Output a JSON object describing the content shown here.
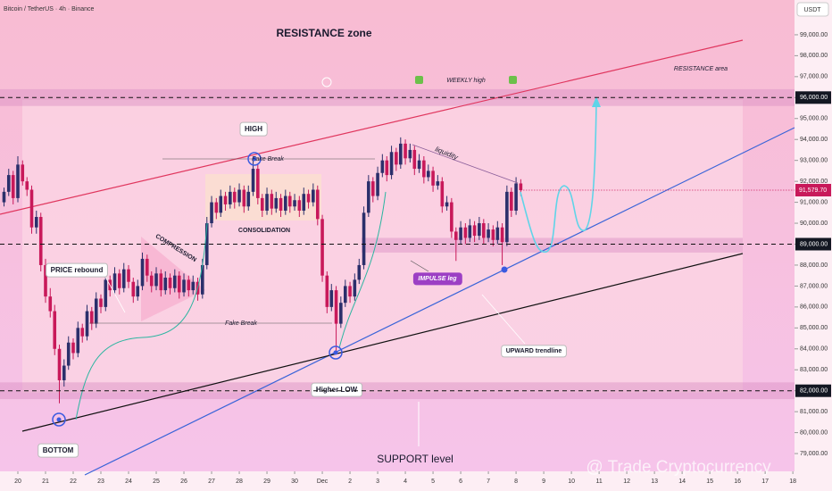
{
  "chart_data": {
    "type": "candlestick",
    "title": "Bitcoin / TetherUS · 4h · Binance",
    "currency": "USDT",
    "xlim": [
      -0.645,
      28.06
    ],
    "ylim": [
      78150,
      100660
    ],
    "xticks": [
      {
        "value": 0,
        "label": "20"
      },
      {
        "value": 1,
        "label": "21"
      },
      {
        "value": 2,
        "label": "22"
      },
      {
        "value": 3,
        "label": "23"
      },
      {
        "value": 4,
        "label": "24"
      },
      {
        "value": 5,
        "label": "25"
      },
      {
        "value": 6,
        "label": "26"
      },
      {
        "value": 7,
        "label": "27"
      },
      {
        "value": 8,
        "label": "28"
      },
      {
        "value": 9,
        "label": "29"
      },
      {
        "value": 10,
        "label": "30"
      },
      {
        "value": 11,
        "label": "Dec"
      },
      {
        "value": 12,
        "label": "2"
      },
      {
        "value": 13,
        "label": "3"
      },
      {
        "value": 14,
        "label": "4"
      },
      {
        "value": 15,
        "label": "5"
      },
      {
        "value": 16,
        "label": "6"
      },
      {
        "value": 17,
        "label": "7"
      },
      {
        "value": 18,
        "label": "8"
      },
      {
        "value": 19,
        "label": "9"
      },
      {
        "value": 20,
        "label": "10"
      },
      {
        "value": 21,
        "label": "11"
      },
      {
        "value": 22,
        "label": "12"
      },
      {
        "value": 23,
        "label": "13"
      },
      {
        "value": 24,
        "label": "14"
      },
      {
        "value": 25,
        "label": "15"
      },
      {
        "value": 26,
        "label": "16"
      },
      {
        "value": 27,
        "label": "17"
      },
      {
        "value": 28,
        "label": "18"
      }
    ],
    "yticks": [
      {
        "value": 79000,
        "label": "79,000.00"
      },
      {
        "value": 80000,
        "label": "80,000.00"
      },
      {
        "value": 81000,
        "label": "81,000.00"
      },
      {
        "value": 82000,
        "label": "82,000.00"
      },
      {
        "value": 83000,
        "label": "83,000.00"
      },
      {
        "value": 84000,
        "label": "84,000.00"
      },
      {
        "value": 85000,
        "label": "85,000.00"
      },
      {
        "value": 86000,
        "label": "86,000.00"
      },
      {
        "value": 87000,
        "label": "87,000.00"
      },
      {
        "value": 88000,
        "label": "88,000.00"
      },
      {
        "value": 89000,
        "label": "89,000.00"
      },
      {
        "value": 90000,
        "label": "90,000.00"
      },
      {
        "value": 91000,
        "label": "91,000.00"
      },
      {
        "value": 92000,
        "label": "92,000.00"
      },
      {
        "value": 93000,
        "label": "93,000.00"
      },
      {
        "value": 94000,
        "label": "94,000.00"
      },
      {
        "value": 95000,
        "label": "95,000.00"
      },
      {
        "value": 96000,
        "label": "96,000.00"
      },
      {
        "value": 97000,
        "label": "97,000.00"
      },
      {
        "value": 98000,
        "label": "98,000.00"
      },
      {
        "value": 99000,
        "label": "99,000.00"
      }
    ],
    "levels": [
      96000,
      89000,
      82000
    ],
    "zones": [
      [
        95600,
        96400
      ],
      [
        88600,
        89300
      ],
      [
        81600,
        82400
      ]
    ],
    "up_color": "#2b2f6b",
    "down_color": "#c8195a",
    "last_price": {
      "value": 91579.7,
      "label": "91,579.70"
    },
    "x": [
      -0.5,
      -0.33,
      -0.17,
      0,
      0.17,
      0.33,
      0.5,
      0.67,
      0.83,
      1,
      1.17,
      1.33,
      1.5,
      1.67,
      1.83,
      2,
      2.17,
      2.33,
      2.5,
      2.67,
      2.83,
      3,
      3.17,
      3.33,
      3.5,
      3.67,
      3.83,
      4,
      4.17,
      4.33,
      4.5,
      4.67,
      4.83,
      5,
      5.17,
      5.33,
      5.5,
      5.67,
      5.83,
      6,
      6.17,
      6.33,
      6.5,
      6.67,
      6.83,
      7,
      7.17,
      7.33,
      7.5,
      7.67,
      7.83,
      8,
      8.17,
      8.33,
      8.5,
      8.67,
      8.83,
      9,
      9.17,
      9.33,
      9.5,
      9.67,
      9.83,
      10,
      10.17,
      10.33,
      10.5,
      10.67,
      10.83,
      11,
      11.17,
      11.33,
      11.5,
      11.67,
      11.83,
      12,
      12.17,
      12.33,
      12.5,
      12.67,
      12.83,
      13,
      13.17,
      13.33,
      13.5,
      13.67,
      13.83,
      14,
      14.17,
      14.33,
      14.5,
      14.67,
      14.83,
      15,
      15.17,
      15.33,
      15.5,
      15.67,
      15.83,
      16,
      16.17,
      16.33,
      16.5,
      16.67,
      16.83,
      17,
      17.17,
      17.33,
      17.5,
      17.67,
      17.83,
      18,
      18.17
    ],
    "candles": [
      [
        91000,
        91700,
        90800,
        91500
      ],
      [
        91500,
        92600,
        91300,
        92300
      ],
      [
        92300,
        92500,
        90900,
        91200
      ],
      [
        91200,
        93200,
        91000,
        92800
      ],
      [
        92800,
        93000,
        91800,
        92000
      ],
      [
        92000,
        92200,
        91300,
        91600
      ],
      [
        91600,
        91800,
        89500,
        89800
      ],
      [
        89800,
        90600,
        89500,
        90300
      ],
      [
        90300,
        90500,
        87700,
        88000
      ],
      [
        88000,
        88300,
        86200,
        86500
      ],
      [
        86500,
        86900,
        85500,
        85800
      ],
      [
        85800,
        86100,
        83700,
        84000
      ],
      [
        84000,
        84200,
        81400,
        82500
      ],
      [
        82500,
        83500,
        82200,
        83200
      ],
      [
        83200,
        84600,
        83000,
        84300
      ],
      [
        84300,
        84500,
        83500,
        83800
      ],
      [
        83800,
        85300,
        83600,
        85000
      ],
      [
        85000,
        85200,
        84300,
        84600
      ],
      [
        84600,
        86100,
        84400,
        85800
      ],
      [
        85800,
        86000,
        84900,
        85200
      ],
      [
        85200,
        86700,
        85000,
        86400
      ],
      [
        86400,
        86600,
        85700,
        86000
      ],
      [
        86000,
        87600,
        85800,
        87300
      ],
      [
        87300,
        87500,
        86500,
        86800
      ],
      [
        86800,
        87900,
        86600,
        87600
      ],
      [
        87600,
        87800,
        86600,
        86900
      ],
      [
        86900,
        88100,
        86700,
        87800
      ],
      [
        87800,
        88000,
        86900,
        87200
      ],
      [
        87200,
        87400,
        86200,
        86500
      ],
      [
        86500,
        87300,
        86300,
        87000
      ],
      [
        87000,
        88600,
        86800,
        88300
      ],
      [
        88300,
        88500,
        87200,
        87500
      ],
      [
        87500,
        87700,
        86700,
        87000
      ],
      [
        87000,
        87900,
        86800,
        87600
      ],
      [
        87600,
        87800,
        86500,
        86800
      ],
      [
        86800,
        87700,
        86600,
        87400
      ],
      [
        87400,
        87600,
        86600,
        86900
      ],
      [
        86900,
        87800,
        86700,
        87500
      ],
      [
        87500,
        87700,
        86400,
        86700
      ],
      [
        86700,
        87600,
        86500,
        87300
      ],
      [
        87300,
        87500,
        86500,
        86800
      ],
      [
        86800,
        87500,
        86600,
        87200
      ],
      [
        87200,
        87400,
        86300,
        86600
      ],
      [
        86600,
        88300,
        86400,
        88000
      ],
      [
        88000,
        90300,
        87800,
        90000
      ],
      [
        90000,
        91300,
        89800,
        91000
      ],
      [
        91000,
        91200,
        90200,
        90500
      ],
      [
        90500,
        91600,
        90300,
        91300
      ],
      [
        91300,
        91500,
        90600,
        90900
      ],
      [
        90900,
        91800,
        90700,
        91500
      ],
      [
        91500,
        91700,
        90700,
        91000
      ],
      [
        91000,
        91900,
        90800,
        91600
      ],
      [
        91600,
        91800,
        90500,
        90800
      ],
      [
        90800,
        91800,
        90600,
        91500
      ],
      [
        91500,
        93000,
        91300,
        92600
      ],
      [
        92600,
        92800,
        90900,
        91200
      ],
      [
        91200,
        91400,
        90300,
        90600
      ],
      [
        90600,
        91700,
        90400,
        91400
      ],
      [
        91400,
        91600,
        90400,
        90700
      ],
      [
        90700,
        91500,
        90500,
        91200
      ],
      [
        91200,
        91400,
        90300,
        90600
      ],
      [
        90600,
        91600,
        90400,
        91300
      ],
      [
        91300,
        91500,
        90500,
        90800
      ],
      [
        90800,
        91400,
        90600,
        91100
      ],
      [
        91100,
        91300,
        90300,
        90600
      ],
      [
        90600,
        91700,
        90400,
        91400
      ],
      [
        91400,
        91600,
        90700,
        91000
      ],
      [
        91000,
        91900,
        90800,
        91600
      ],
      [
        91600,
        91800,
        89900,
        90200
      ],
      [
        90200,
        90400,
        87200,
        87500
      ],
      [
        87500,
        87700,
        85700,
        86000
      ],
      [
        86000,
        87100,
        85800,
        86800
      ],
      [
        86800,
        87000,
        83800,
        85200
      ],
      [
        85200,
        86500,
        85000,
        86200
      ],
      [
        86200,
        87300,
        86000,
        87000
      ],
      [
        87000,
        87200,
        86200,
        86500
      ],
      [
        86500,
        87600,
        86300,
        87300
      ],
      [
        87300,
        88300,
        87100,
        88000
      ],
      [
        88000,
        90800,
        87800,
        90500
      ],
      [
        90500,
        92300,
        90300,
        92000
      ],
      [
        92000,
        92200,
        91000,
        91300
      ],
      [
        91300,
        92700,
        91100,
        92400
      ],
      [
        92400,
        93300,
        92200,
        93000
      ],
      [
        93000,
        93200,
        92000,
        92300
      ],
      [
        92300,
        93700,
        92100,
        93400
      ],
      [
        93400,
        93600,
        92500,
        92800
      ],
      [
        92800,
        94100,
        92600,
        93800
      ],
      [
        93800,
        94000,
        92800,
        93100
      ],
      [
        93100,
        93800,
        92900,
        93500
      ],
      [
        93500,
        93700,
        92300,
        92600
      ],
      [
        92600,
        93300,
        92400,
        93000
      ],
      [
        93000,
        93200,
        91900,
        92200
      ],
      [
        92200,
        92800,
        92000,
        92500
      ],
      [
        92500,
        92700,
        91500,
        91800
      ],
      [
        91800,
        92300,
        91600,
        92000
      ],
      [
        92000,
        92200,
        90500,
        90800
      ],
      [
        90800,
        91300,
        90600,
        91000
      ],
      [
        91000,
        91200,
        89300,
        89600
      ],
      [
        89600,
        89800,
        88200,
        89200
      ],
      [
        89200,
        90100,
        89000,
        89800
      ],
      [
        89800,
        90000,
        89000,
        89300
      ],
      [
        89300,
        90200,
        89100,
        89900
      ],
      [
        89900,
        90100,
        89100,
        89400
      ],
      [
        89400,
        90300,
        89200,
        90000
      ],
      [
        90000,
        90200,
        89000,
        89300
      ],
      [
        89300,
        90000,
        89100,
        89700
      ],
      [
        89700,
        89900,
        88900,
        89200
      ],
      [
        89200,
        90100,
        89000,
        89800
      ],
      [
        89800,
        90000,
        88000,
        89100
      ],
      [
        89100,
        91800,
        88900,
        91500
      ],
      [
        91500,
        91700,
        90300,
        90600
      ],
      [
        90600,
        92200,
        90400,
        91900
      ],
      [
        91900,
        92100,
        91300,
        91579.7
      ]
    ],
    "annotations": [
      "RESISTANCE zone",
      "RESISTANCE area",
      "WEEKLY high",
      "HIGH",
      "Fake Break",
      "liquidity",
      "COMPRESSION",
      "CONSOLIDATION",
      "PRICE rebound",
      "Fake Break",
      "IMPULSE leg",
      "UPWARD trendline",
      "Higher LOW",
      "BOTTOM",
      "SUPPORT level",
      "@ Trade Cryptocurrency"
    ]
  }
}
